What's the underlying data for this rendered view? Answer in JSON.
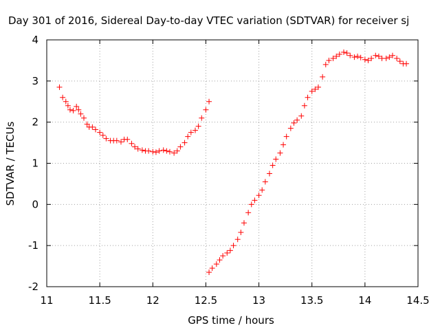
{
  "chart_data": {
    "type": "scatter",
    "title": "Day 301 of 2016, Sidereal Day-to-day VTEC variation (SDTVAR) for receiver sj",
    "xlabel": "GPS time / hours",
    "ylabel": "SDTVAR / TECUs",
    "xlim": [
      11,
      14.5
    ],
    "ylim": [
      -2,
      4
    ],
    "xticks": [
      11,
      11.5,
      12,
      12.5,
      13,
      13.5,
      14,
      14.5
    ],
    "xtick_labels": [
      "11",
      "11.5",
      "12",
      "12.5",
      "13",
      "13.5",
      "14",
      "14.5"
    ],
    "yticks": [
      -2,
      -1,
      0,
      1,
      2,
      3,
      4
    ],
    "ytick_labels": [
      "-2",
      "-1",
      "0",
      "1",
      "2",
      "3",
      "4"
    ],
    "grid": true,
    "legend": "none",
    "marker": "plus",
    "color": "#ff0000",
    "series": [
      {
        "x": [
          11.12,
          11.15,
          11.18,
          11.2,
          11.22,
          11.25,
          11.28,
          11.3,
          11.32,
          11.35,
          11.38,
          11.4,
          11.43,
          11.46,
          11.5,
          11.53,
          11.56,
          11.6,
          11.63,
          11.66,
          11.7,
          11.73,
          11.76,
          11.8,
          11.83,
          11.86,
          11.9,
          11.93,
          11.96,
          12.0,
          12.03,
          12.06,
          12.1,
          12.13,
          12.16,
          12.2,
          12.23,
          12.26,
          12.3,
          12.33,
          12.36,
          12.4,
          12.43,
          12.46,
          12.5,
          12.53
        ],
        "y": [
          2.85,
          2.6,
          2.5,
          2.4,
          2.3,
          2.28,
          2.38,
          2.3,
          2.2,
          2.1,
          1.95,
          1.88,
          1.88,
          1.82,
          1.75,
          1.68,
          1.6,
          1.55,
          1.55,
          1.55,
          1.52,
          1.58,
          1.58,
          1.48,
          1.4,
          1.35,
          1.32,
          1.3,
          1.3,
          1.28,
          1.27,
          1.3,
          1.32,
          1.3,
          1.28,
          1.25,
          1.3,
          1.4,
          1.5,
          1.65,
          1.75,
          1.8,
          1.9,
          2.1,
          2.3,
          2.5
        ]
      },
      {
        "x": [
          12.53,
          12.56,
          12.6,
          12.63,
          12.66,
          12.7,
          12.73,
          12.76,
          12.8,
          12.83,
          12.86,
          12.9,
          12.93,
          12.96,
          13.0,
          13.03,
          13.06,
          13.1,
          13.13,
          13.16,
          13.2,
          13.23,
          13.26,
          13.3,
          13.33,
          13.36,
          13.4,
          13.43,
          13.46,
          13.5,
          13.53,
          13.56,
          13.6,
          13.63,
          13.66,
          13.7,
          13.73,
          13.76,
          13.8,
          13.83,
          13.86,
          13.9,
          13.93,
          13.96,
          14.0,
          14.03,
          14.06,
          14.1,
          14.13,
          14.16,
          14.2,
          14.23,
          14.26,
          14.3,
          14.33,
          14.36,
          14.39
        ],
        "y": [
          -1.65,
          -1.55,
          -1.45,
          -1.35,
          -1.25,
          -1.18,
          -1.12,
          -1.0,
          -0.85,
          -0.68,
          -0.45,
          -0.2,
          0.0,
          0.1,
          0.22,
          0.35,
          0.55,
          0.75,
          0.95,
          1.1,
          1.25,
          1.45,
          1.65,
          1.85,
          1.98,
          2.05,
          2.15,
          2.4,
          2.6,
          2.75,
          2.8,
          2.85,
          3.1,
          3.4,
          3.5,
          3.55,
          3.6,
          3.65,
          3.7,
          3.68,
          3.62,
          3.58,
          3.6,
          3.57,
          3.52,
          3.5,
          3.55,
          3.62,
          3.6,
          3.55,
          3.55,
          3.58,
          3.62,
          3.55,
          3.48,
          3.42,
          3.42
        ]
      }
    ]
  }
}
